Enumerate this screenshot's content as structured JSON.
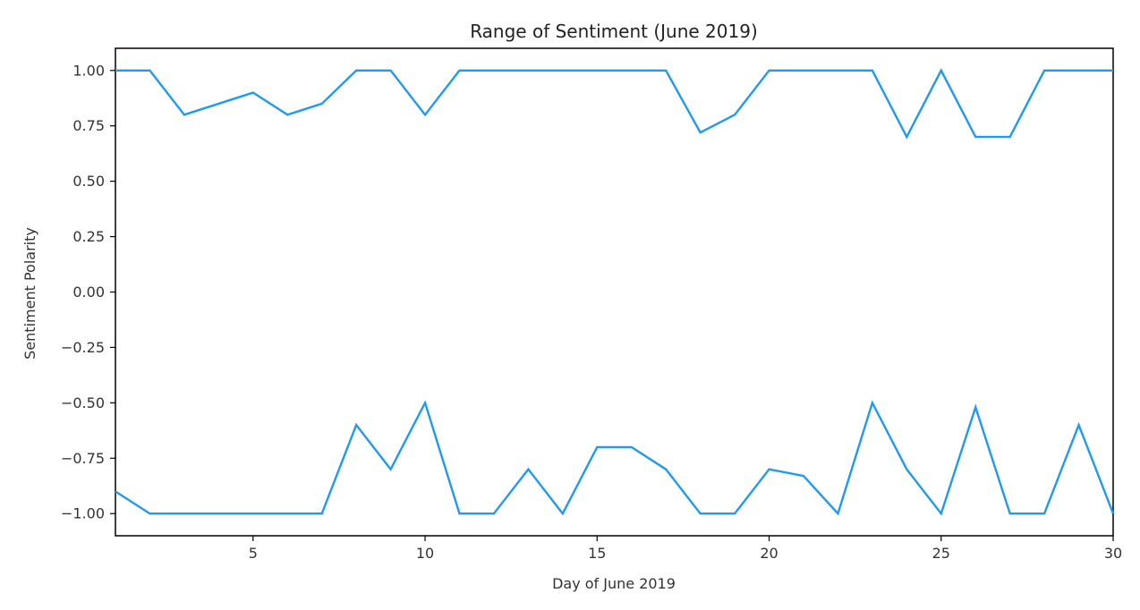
{
  "chart_data": {
    "type": "line",
    "title": "Range of Sentiment (June 2019)",
    "xlabel": "Day of June 2019",
    "ylabel": "Sentiment Polarity",
    "xlim": [
      1,
      30
    ],
    "ylim": [
      -1.1,
      1.1
    ],
    "x_ticks": [
      5,
      10,
      15,
      20,
      25,
      30
    ],
    "y_ticks": [
      1.0,
      0.75,
      0.5,
      0.25,
      0.0,
      -0.25,
      -0.5,
      -0.75,
      -1.0
    ],
    "x_tick_labels": [
      "5",
      "10",
      "15",
      "20",
      "25",
      "30"
    ],
    "y_tick_labels": [
      "1.00",
      "0.75",
      "0.50",
      "0.25",
      "0.00",
      "−0.25",
      "−0.50",
      "−0.75",
      "−1.00"
    ],
    "grid": false,
    "line_color": "#1f9aef",
    "x": [
      1,
      2,
      3,
      4,
      5,
      6,
      7,
      8,
      9,
      10,
      11,
      12,
      13,
      14,
      15,
      16,
      17,
      18,
      19,
      20,
      21,
      22,
      23,
      24,
      25,
      26,
      27,
      28,
      29,
      30
    ],
    "series": [
      {
        "values": [
          1.0,
          1.0,
          0.8,
          0.85,
          0.9,
          0.8,
          0.85,
          1.0,
          1.0,
          0.8,
          1.0,
          1.0,
          1.0,
          1.0,
          1.0,
          1.0,
          1.0,
          0.72,
          0.8,
          1.0,
          1.0,
          1.0,
          1.0,
          0.7,
          1.0,
          0.7,
          0.7,
          1.0,
          1.0,
          1.0
        ]
      },
      {
        "values": [
          -0.9,
          -1.0,
          -1.0,
          -1.0,
          -1.0,
          -1.0,
          -1.0,
          -0.6,
          -0.8,
          -0.5,
          -1.0,
          -1.0,
          -0.8,
          -1.0,
          -0.7,
          -0.7,
          -0.8,
          -1.0,
          -1.0,
          -0.8,
          -0.83,
          -1.0,
          -0.5,
          -0.8,
          -1.0,
          -0.52,
          -1.0,
          -1.0,
          -0.6,
          -1.0
        ]
      }
    ]
  }
}
